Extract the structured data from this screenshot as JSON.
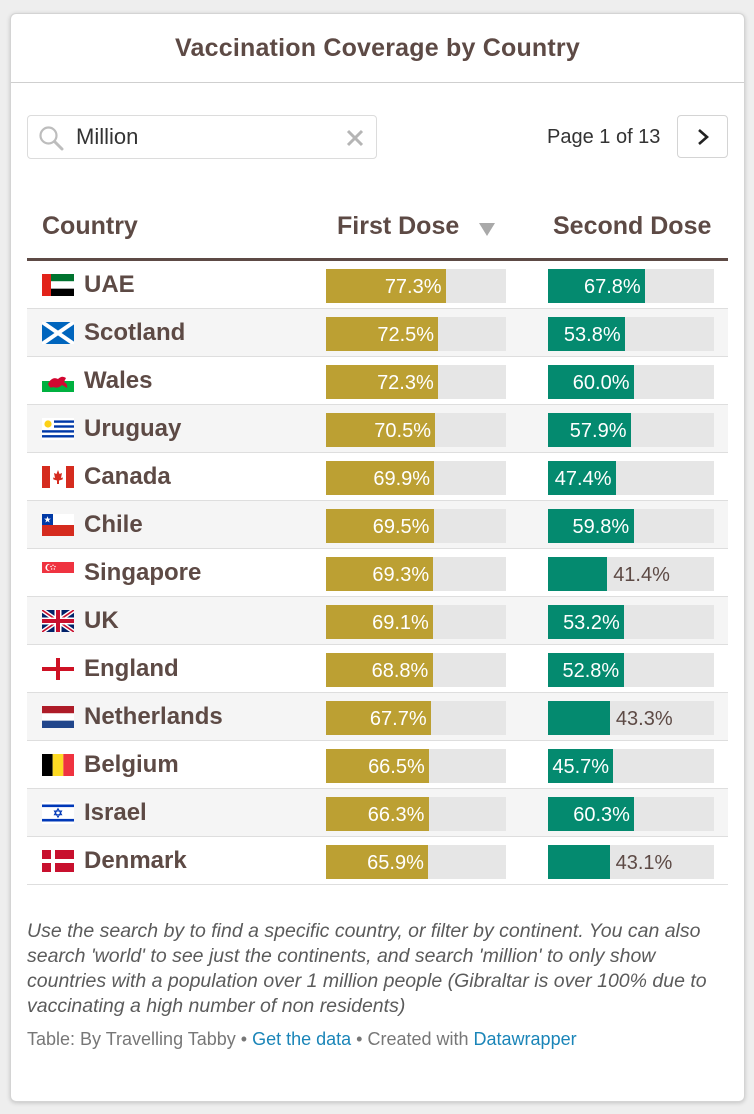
{
  "title": "Vaccination Coverage by Country",
  "search": {
    "value": "Million",
    "icon": "search-icon",
    "clear_icon": "close-icon"
  },
  "pagination": {
    "text": "Page 1 of 13",
    "next_icon": "chevron-right-icon"
  },
  "columns": {
    "country": "Country",
    "first": "First Dose",
    "second": "Second Dose",
    "sort_icon": "sort-desc-icon"
  },
  "colors": {
    "first": "#bca033",
    "second": "#048a6f",
    "track": "#e6e6e6",
    "header": "#5d4a45"
  },
  "rows": [
    {
      "country": "UAE",
      "flag": "uae-flag-icon",
      "first": 77.3,
      "first_label": "77.3%",
      "second": 67.8,
      "second_label": "67.8%"
    },
    {
      "country": "Scotland",
      "flag": "scotland-flag-icon",
      "first": 72.5,
      "first_label": "72.5%",
      "second": 53.8,
      "second_label": "53.8%"
    },
    {
      "country": "Wales",
      "flag": "wales-flag-icon",
      "first": 72.3,
      "first_label": "72.3%",
      "second": 60.0,
      "second_label": "60.0%"
    },
    {
      "country": "Uruguay",
      "flag": "uruguay-flag-icon",
      "first": 70.5,
      "first_label": "70.5%",
      "second": 57.9,
      "second_label": "57.9%"
    },
    {
      "country": "Canada",
      "flag": "canada-flag-icon",
      "first": 69.9,
      "first_label": "69.9%",
      "second": 47.4,
      "second_label": "47.4%"
    },
    {
      "country": "Chile",
      "flag": "chile-flag-icon",
      "first": 69.5,
      "first_label": "69.5%",
      "second": 59.8,
      "second_label": "59.8%"
    },
    {
      "country": "Singapore",
      "flag": "singapore-flag-icon",
      "first": 69.3,
      "first_label": "69.3%",
      "second": 41.4,
      "second_label": "41.4%"
    },
    {
      "country": "UK",
      "flag": "uk-flag-icon",
      "first": 69.1,
      "first_label": "69.1%",
      "second": 53.2,
      "second_label": "53.2%"
    },
    {
      "country": "England",
      "flag": "england-flag-icon",
      "first": 68.8,
      "first_label": "68.8%",
      "second": 52.8,
      "second_label": "52.8%"
    },
    {
      "country": "Netherlands",
      "flag": "netherlands-flag-icon",
      "first": 67.7,
      "first_label": "67.7%",
      "second": 43.3,
      "second_label": "43.3%"
    },
    {
      "country": "Belgium",
      "flag": "belgium-flag-icon",
      "first": 66.5,
      "first_label": "66.5%",
      "second": 45.7,
      "second_label": "45.7%"
    },
    {
      "country": "Israel",
      "flag": "israel-flag-icon",
      "first": 66.3,
      "first_label": "66.3%",
      "second": 60.3,
      "second_label": "60.3%"
    },
    {
      "country": "Denmark",
      "flag": "denmark-flag-icon",
      "first": 65.9,
      "first_label": "65.9%",
      "second": 43.1,
      "second_label": "43.1%"
    }
  ],
  "note": "Use the search by to find a specific country, or filter by continent. You can also search 'world' to see just the continents, and search 'million' to only show countries with a population over 1 million people (Gibraltar is over 100% due to vaccinating a high number of non residents)",
  "footer": {
    "prefix": "Table: By Travelling Tabby • ",
    "link1": "Get the data",
    "middle": " • Created with ",
    "link2": "Datawrapper"
  }
}
